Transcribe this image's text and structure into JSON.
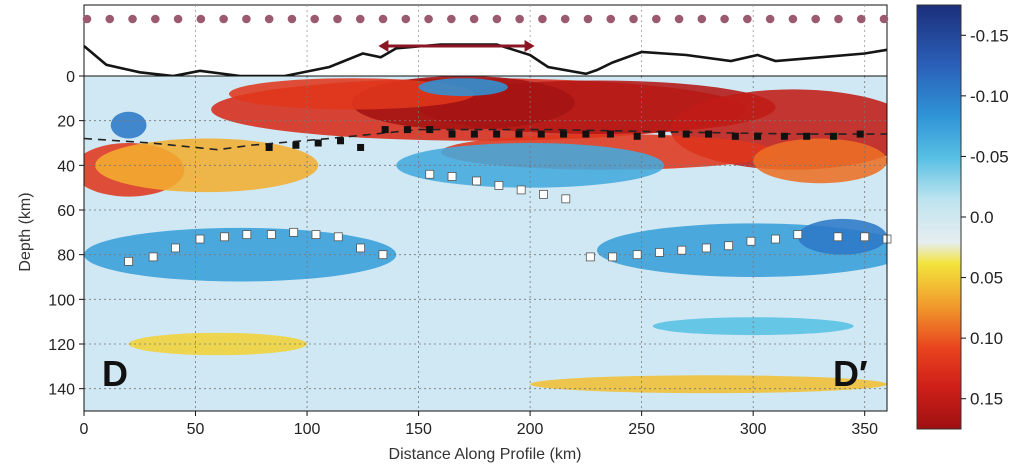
{
  "chart_data": {
    "type": "heatmap",
    "title": "",
    "xlabel": "Distance Along Profile (km)",
    "ylabel": "Depth (km)",
    "xlim": [
      0,
      360
    ],
    "ylim": [
      150,
      0
    ],
    "x_ticks": [
      "0",
      "50",
      "100",
      "150",
      "200",
      "250",
      "300",
      "350"
    ],
    "y_ticks": [
      "0",
      "20",
      "40",
      "60",
      "80",
      "100",
      "120",
      "140"
    ],
    "top_panel_ticks": [
      "0"
    ],
    "grid": true,
    "profile_labels": {
      "start": "D",
      "end": "D′"
    },
    "colorbar": {
      "ticks": [
        "-0.15",
        "-0.10",
        "-0.05",
        "0.0",
        "0.05",
        "0.10",
        "0.15"
      ],
      "range": [
        -0.175,
        0.175
      ],
      "colors": {
        "neg_strong": "#1c2f7a",
        "neg_mid": "#2a7fd0",
        "neg_light": "#4fb6e3",
        "neutral": "#cfe8f3",
        "pos_light": "#f2e13a",
        "pos_mid": "#ee7a25",
        "pos_strong": "#d62516",
        "pos_max": "#9e1112"
      }
    },
    "stations_count": 36,
    "station_color": "#9b5a6f",
    "arrow_range_km": [
      132,
      202
    ],
    "arrow_color": "#8a1623",
    "topography_km": [
      [
        0,
        4
      ],
      [
        10,
        1.5
      ],
      [
        25,
        0.5
      ],
      [
        40,
        0
      ],
      [
        52,
        0.7
      ],
      [
        70,
        0
      ],
      [
        90,
        0
      ],
      [
        110,
        1.2
      ],
      [
        125,
        3
      ],
      [
        133,
        2.5
      ],
      [
        140,
        3.7
      ],
      [
        160,
        4.2
      ],
      [
        185,
        4.2
      ],
      [
        200,
        2.8
      ],
      [
        208,
        1.2
      ],
      [
        225,
        0.3
      ],
      [
        230,
        0.8
      ],
      [
        237,
        1.8
      ],
      [
        250,
        3.2
      ],
      [
        270,
        2.8
      ],
      [
        290,
        2.0
      ],
      [
        302,
        2.8
      ],
      [
        310,
        2.0
      ],
      [
        330,
        2.5
      ],
      [
        350,
        3.0
      ],
      [
        360,
        3.5
      ]
    ],
    "moho_dashed": [
      [
        0,
        28
      ],
      [
        30,
        30
      ],
      [
        60,
        33
      ],
      [
        75,
        31
      ],
      [
        110,
        28
      ],
      [
        150,
        24
      ],
      [
        210,
        24
      ],
      [
        260,
        25
      ],
      [
        320,
        26
      ],
      [
        360,
        26
      ]
    ],
    "lab_markers_black": [
      [
        83,
        32
      ],
      [
        95,
        31
      ],
      [
        105,
        30
      ],
      [
        115,
        29
      ],
      [
        124,
        32
      ],
      [
        135,
        24
      ],
      [
        145,
        24
      ],
      [
        155,
        24
      ],
      [
        165,
        26
      ],
      [
        175,
        26
      ],
      [
        185,
        26
      ],
      [
        195,
        26
      ],
      [
        205,
        26
      ],
      [
        215,
        26
      ],
      [
        225,
        26
      ],
      [
        236,
        26
      ],
      [
        248,
        27
      ],
      [
        259,
        26
      ],
      [
        270,
        26
      ],
      [
        280,
        26
      ],
      [
        292,
        27
      ],
      [
        302,
        27
      ],
      [
        314,
        27
      ],
      [
        324,
        27
      ],
      [
        336,
        27
      ],
      [
        348,
        26
      ]
    ],
    "interface_markers_white": [
      [
        20,
        83
      ],
      [
        31,
        81
      ],
      [
        41,
        77
      ],
      [
        52,
        73
      ],
      [
        63,
        72
      ],
      [
        73,
        71
      ],
      [
        84,
        71
      ],
      [
        94,
        70
      ],
      [
        104,
        71
      ],
      [
        114,
        72
      ],
      [
        124,
        77
      ],
      [
        134,
        80
      ],
      [
        155,
        44
      ],
      [
        165,
        45
      ],
      [
        176,
        47
      ],
      [
        186,
        49
      ],
      [
        196,
        51
      ],
      [
        206,
        53
      ],
      [
        216,
        55
      ],
      [
        227,
        81
      ],
      [
        237,
        81
      ],
      [
        248,
        80
      ],
      [
        258,
        79
      ],
      [
        268,
        78
      ],
      [
        279,
        77
      ],
      [
        289,
        76
      ],
      [
        299,
        74
      ],
      [
        310,
        73
      ],
      [
        320,
        71
      ],
      [
        338,
        72
      ],
      [
        350,
        72
      ],
      [
        360,
        73
      ]
    ],
    "anomaly_blobs": [
      {
        "x": 177,
        "y": 15,
        "rx": 120,
        "ry": 14,
        "value": 0.13
      },
      {
        "x": 230,
        "y": 14,
        "rx": 80,
        "ry": 12,
        "value": 0.16
      },
      {
        "x": 170,
        "y": 12,
        "rx": 50,
        "ry": 12,
        "value": 0.17
      },
      {
        "x": 318,
        "y": 24,
        "rx": 55,
        "ry": 18,
        "value": 0.15
      },
      {
        "x": 120,
        "y": 8,
        "rx": 55,
        "ry": 7,
        "value": 0.12
      },
      {
        "x": 20,
        "y": 42,
        "rx": 25,
        "ry": 12,
        "value": 0.12
      },
      {
        "x": 55,
        "y": 40,
        "rx": 50,
        "ry": 12,
        "value": 0.06
      },
      {
        "x": 235,
        "y": 34,
        "rx": 75,
        "ry": 8,
        "value": 0.12
      },
      {
        "x": 330,
        "y": 38,
        "rx": 30,
        "ry": 10,
        "value": 0.09
      },
      {
        "x": 200,
        "y": 40,
        "rx": 60,
        "ry": 10,
        "value": -0.06
      },
      {
        "x": 70,
        "y": 80,
        "rx": 70,
        "ry": 12,
        "value": -0.07
      },
      {
        "x": 300,
        "y": 78,
        "rx": 70,
        "ry": 12,
        "value": -0.07
      },
      {
        "x": 340,
        "y": 72,
        "rx": 20,
        "ry": 8,
        "value": -0.1
      },
      {
        "x": 20,
        "y": 22,
        "rx": 8,
        "ry": 6,
        "value": -0.1
      },
      {
        "x": 170,
        "y": 5,
        "rx": 20,
        "ry": 4,
        "value": -0.08
      },
      {
        "x": 60,
        "y": 120,
        "rx": 40,
        "ry": 5,
        "value": 0.04
      },
      {
        "x": 280,
        "y": 138,
        "rx": 80,
        "ry": 4,
        "value": 0.05
      },
      {
        "x": 300,
        "y": 112,
        "rx": 45,
        "ry": 4,
        "value": -0.04
      }
    ]
  }
}
